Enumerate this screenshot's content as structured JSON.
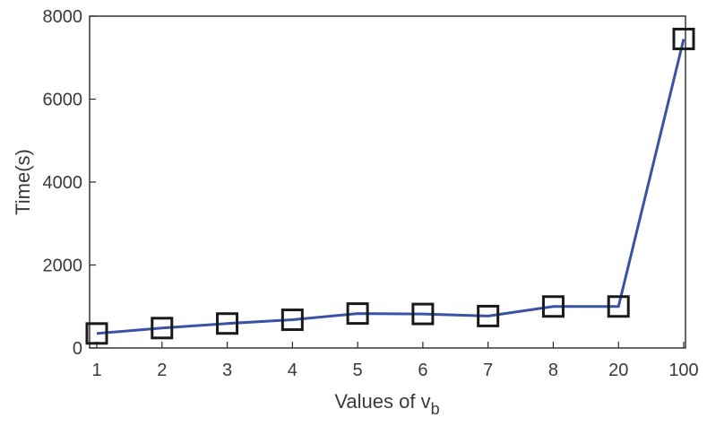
{
  "chart_data": {
    "type": "line",
    "title": "",
    "xlabel": "Values of v",
    "xlabel_subscript": "b",
    "ylabel": "Time(s)",
    "categories": [
      "1",
      "2",
      "3",
      "4",
      "5",
      "6",
      "7",
      "8",
      "20",
      "100"
    ],
    "series": [
      {
        "values": [
          350,
          480,
          590,
          680,
          830,
          820,
          770,
          1000,
          1000,
          7450
        ],
        "color": "#3953a4",
        "marker": "square",
        "marker_color": "#1a1a1a"
      }
    ],
    "ylim": [
      0,
      8000
    ],
    "yticks": [
      0,
      2000,
      4000,
      6000,
      8000
    ],
    "grid": false,
    "legend": "none"
  }
}
